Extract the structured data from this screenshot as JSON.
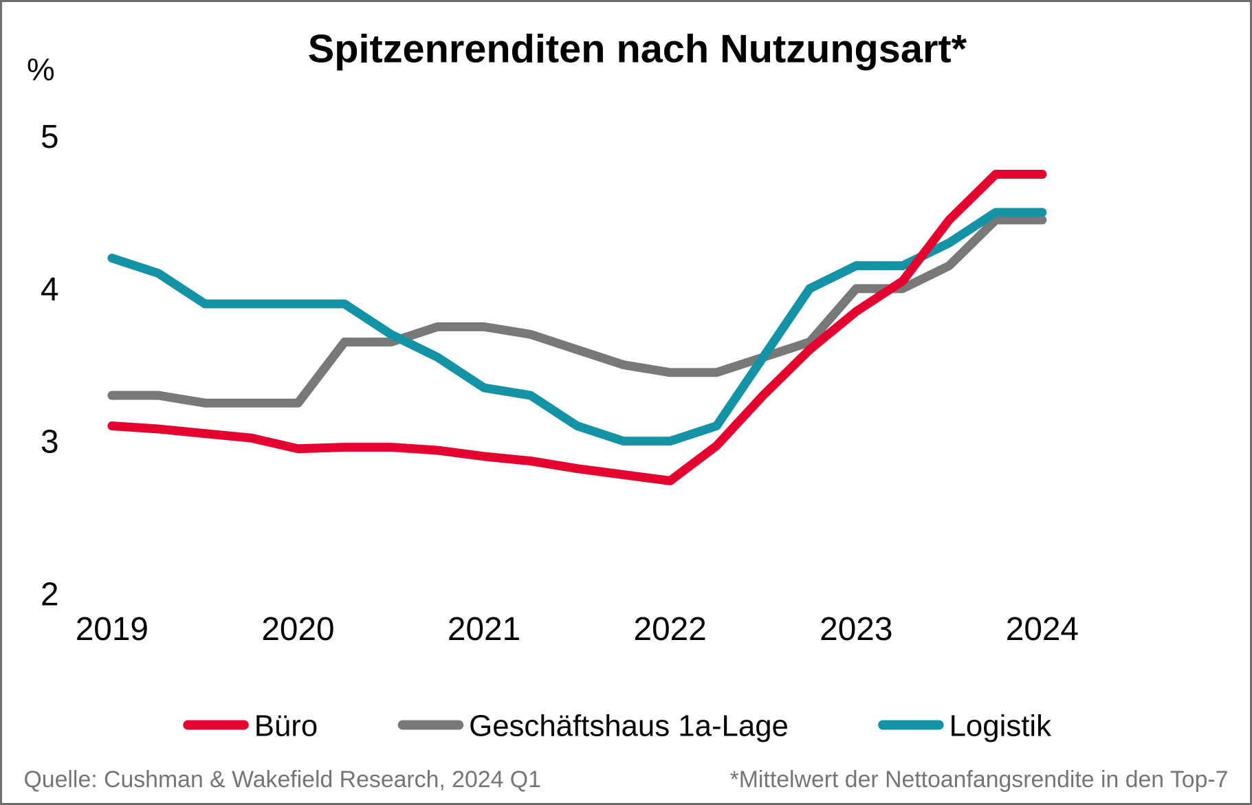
{
  "chart_data": {
    "type": "line",
    "title": "Spitzenrenditen nach Nutzungsart*",
    "unit": "%",
    "x_tick_labels": [
      "2019",
      "2020",
      "2021",
      "2022",
      "2023",
      "2024"
    ],
    "y_ticks": [
      5,
      4,
      3,
      2
    ],
    "ylim": [
      2,
      5
    ],
    "grid": "off",
    "legend_position": "bottom",
    "quarters": [
      "2019 Q1",
      "2019 Q2",
      "2019 Q3",
      "2019 Q4",
      "2020 Q1",
      "2020 Q2",
      "2020 Q3",
      "2020 Q4",
      "2021 Q1",
      "2021 Q2",
      "2021 Q3",
      "2021 Q4",
      "2022 Q1",
      "2022 Q2",
      "2022 Q3",
      "2022 Q4",
      "2023 Q1",
      "2023 Q2",
      "2023 Q3",
      "2023 Q4",
      "2024 Q1"
    ],
    "series": [
      {
        "name": "Büro",
        "slug": "buero",
        "color": "#e4032e",
        "values": [
          3.1,
          3.08,
          3.05,
          3.02,
          2.95,
          2.96,
          2.96,
          2.94,
          2.9,
          2.87,
          2.82,
          2.78,
          2.74,
          2.97,
          3.3,
          3.6,
          3.85,
          4.05,
          4.45,
          4.75,
          4.75
        ]
      },
      {
        "name": "Geschäftshaus 1a-Lage",
        "slug": "geschaeftshaus-1a-lage",
        "color": "#787878",
        "values": [
          3.3,
          3.3,
          3.25,
          3.25,
          3.25,
          3.65,
          3.65,
          3.75,
          3.75,
          3.7,
          3.6,
          3.5,
          3.45,
          3.45,
          3.55,
          3.65,
          4.0,
          4.0,
          4.15,
          4.45,
          4.45
        ]
      },
      {
        "name": "Logistik",
        "slug": "logistik",
        "color": "#1593a6",
        "values": [
          4.2,
          4.1,
          3.9,
          3.9,
          3.9,
          3.9,
          3.7,
          3.55,
          3.35,
          3.3,
          3.1,
          3.0,
          3.0,
          3.1,
          3.55,
          4.0,
          4.15,
          4.15,
          4.3,
          4.5,
          4.5
        ]
      }
    ]
  },
  "footer": {
    "source": "Quelle: Cushman & Wakefield Research, 2024 Q1",
    "note": "*Mittelwert der Nettoanfangsrendite in den Top-7"
  }
}
